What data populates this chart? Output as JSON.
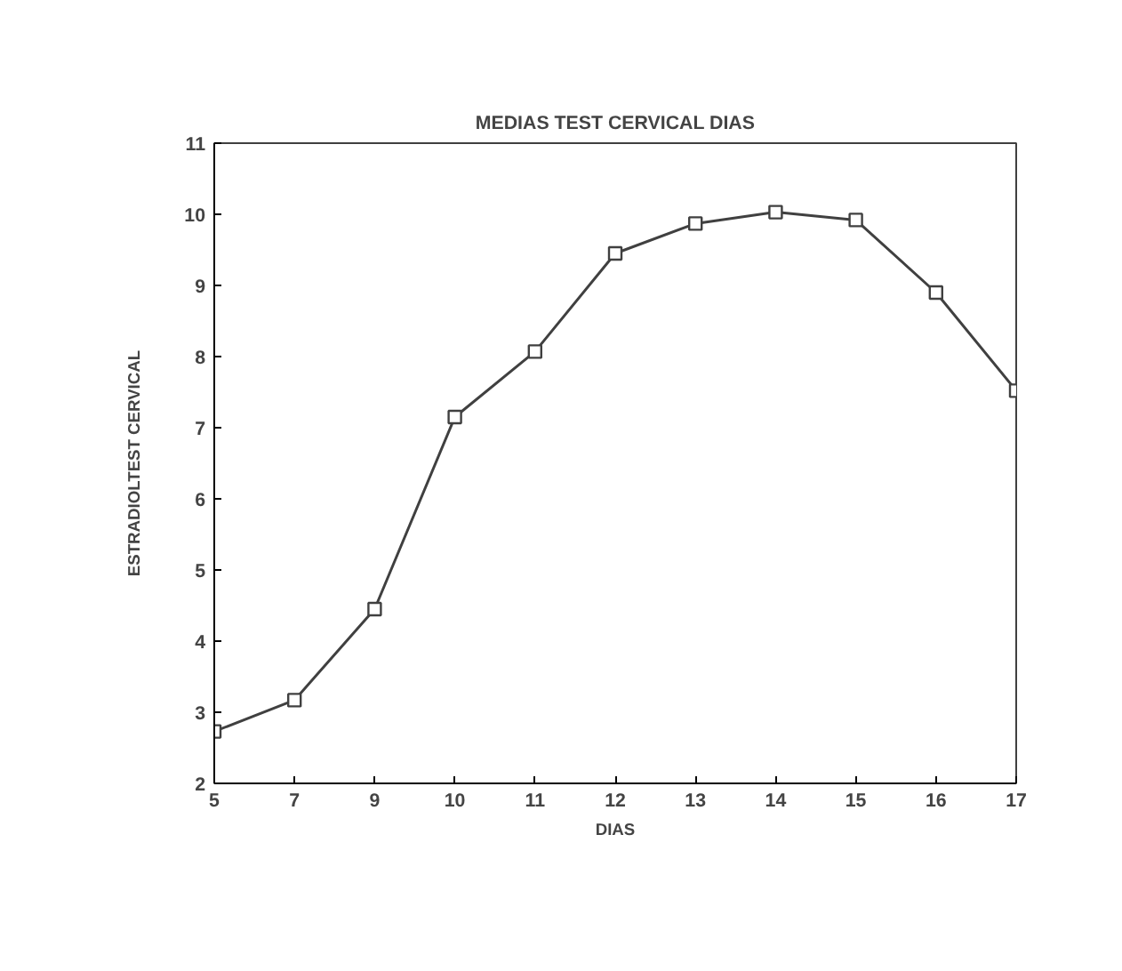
{
  "chart_data": {
    "type": "line",
    "title": "MEDIAS TEST CERVICAL DIAS",
    "xlabel": "DIAS",
    "ylabel": "ESTRADIOLTEST CERVICAL",
    "categories": [
      "5",
      "7",
      "9",
      "10",
      "11",
      "12",
      "13",
      "14",
      "15",
      "16",
      "17"
    ],
    "series": [
      {
        "color": "#404040",
        "values": [
          2.73,
          3.17,
          4.45,
          7.15,
          8.07,
          9.45,
          9.87,
          10.03,
          9.92,
          8.9,
          7.52
        ]
      }
    ],
    "ylim": [
      2,
      11
    ],
    "yticks": [
      2,
      3,
      4,
      5,
      6,
      7,
      8,
      9,
      10,
      11
    ],
    "grid": false,
    "marker": "square",
    "line_style": "solid"
  }
}
